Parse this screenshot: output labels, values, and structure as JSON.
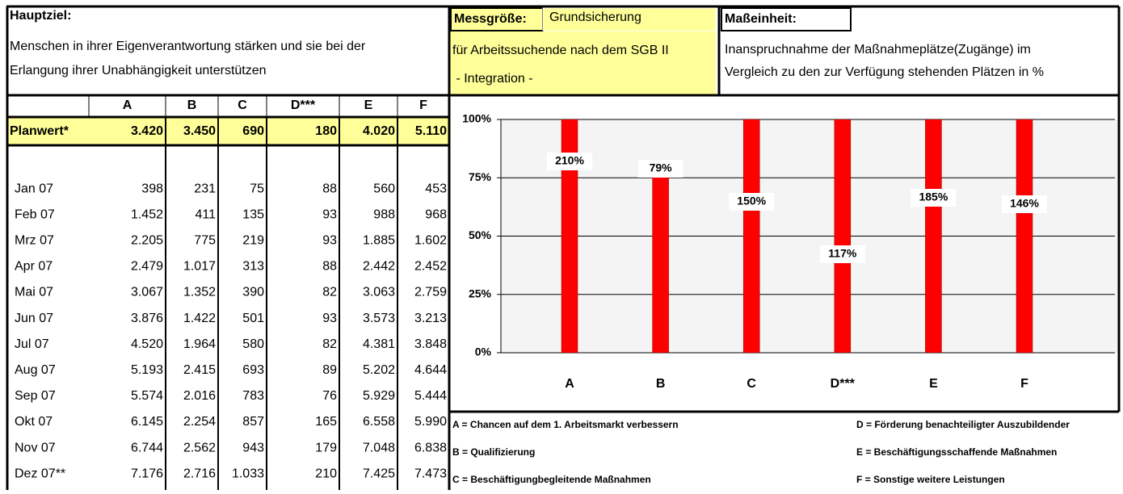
{
  "header": {
    "goal_label": "Hauptziel:",
    "goal_lines": [
      "Menschen in ihrer Eigenverantwortung stärken und sie bei der",
      "Erlangung ihrer Unabhängigkeit unterstützen"
    ],
    "measure_label": "Messgröße:",
    "measure_name": "Grundsicherung",
    "measure_lines": [
      "für Arbeitssuchende nach dem SGB II",
      " - Integration -"
    ],
    "unit_label": "Maßeinheit:",
    "unit_lines": [
      "Inanspruchnahme der Maßnahmeplätze(Zugänge) im",
      "Vergleich zu den zur Verfügung stehenden Plätzen in %"
    ]
  },
  "table": {
    "columns": [
      "A",
      "B",
      "C",
      "D***",
      "E",
      "F"
    ],
    "plan": {
      "label": "Planwert*",
      "values": [
        "3.420",
        "3.450",
        "690",
        "180",
        "4.020",
        "5.110"
      ]
    },
    "rows": [
      [
        "Jan 07",
        "398",
        "231",
        "75",
        "88",
        "560",
        "453"
      ],
      [
        "Feb 07",
        "1.452",
        "411",
        "135",
        "93",
        "988",
        "968"
      ],
      [
        "Mrz 07",
        "2.205",
        "775",
        "219",
        "93",
        "1.885",
        "1.602"
      ],
      [
        "Apr 07",
        "2.479",
        "1.017",
        "313",
        "88",
        "2.442",
        "2.452"
      ],
      [
        "Mai 07",
        "3.067",
        "1.352",
        "390",
        "82",
        "3.063",
        "2.759"
      ],
      [
        "Jun 07",
        "3.876",
        "1.422",
        "501",
        "93",
        "3.573",
        "3.213"
      ],
      [
        "Jul 07",
        "4.520",
        "1.964",
        "580",
        "82",
        "4.381",
        "3.848"
      ],
      [
        "Aug 07",
        "5.193",
        "2.415",
        "693",
        "89",
        "5.202",
        "4.644"
      ],
      [
        "Sep 07",
        "5.574",
        "2.016",
        "783",
        "76",
        "5.929",
        "5.444"
      ],
      [
        "Okt 07",
        "6.145",
        "2.254",
        "857",
        "165",
        "6.558",
        "5.990"
      ],
      [
        "Nov 07",
        "6.744",
        "2.562",
        "943",
        "179",
        "7.048",
        "6.838"
      ],
      [
        "Dez 07**",
        "7.176",
        "2.716",
        "1.033",
        "210",
        "7.425",
        "7.473"
      ]
    ]
  },
  "chart_data": {
    "type": "bar",
    "categories": [
      "A",
      "B",
      "C",
      "D***",
      "E",
      "F"
    ],
    "values": [
      210,
      79,
      150,
      117,
      185,
      146
    ],
    "value_labels": [
      "210%",
      "79%",
      "150%",
      "117%",
      "185%",
      "146%"
    ],
    "color": "#ff0000",
    "ylim": [
      0,
      100
    ],
    "yticks": [
      {
        "value": 0,
        "label": "0%"
      },
      {
        "value": 25,
        "label": "25%"
      },
      {
        "value": 50,
        "label": "50%"
      },
      {
        "value": 75,
        "label": "75%"
      },
      {
        "value": 100,
        "label": "100%"
      }
    ],
    "grid": true
  },
  "legend": [
    "A = Chancen auf dem 1. Arbeitsmarkt verbessern",
    "D = Förderung benachteiligter Auszubildender",
    "B = Qualifizierung",
    "E = Beschäftigungsschaffende Maßnahmen",
    "C = Beschäftigungbegleitende Maßnahmen",
    "F = Sonstige weitere Leistungen"
  ]
}
